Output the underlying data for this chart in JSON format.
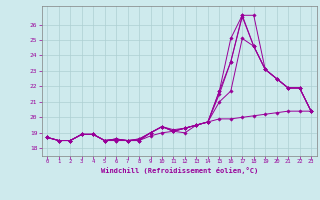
{
  "xlabel": "Windchill (Refroidissement éolien,°C)",
  "background_color": "#ceeaed",
  "grid_color": "#aecfd2",
  "line_color": "#990099",
  "x_ticks": [
    0,
    1,
    2,
    3,
    4,
    5,
    6,
    7,
    8,
    9,
    10,
    11,
    12,
    13,
    14,
    15,
    16,
    17,
    18,
    19,
    20,
    21,
    22,
    23
  ],
  "ylim": [
    17.5,
    27.2
  ],
  "xlim": [
    -0.5,
    23.5
  ],
  "yticks": [
    18,
    19,
    20,
    21,
    22,
    23,
    24,
    25,
    26
  ],
  "series": [
    [
      18.7,
      18.5,
      18.5,
      18.9,
      18.9,
      18.5,
      18.5,
      18.5,
      18.5,
      19.0,
      19.4,
      19.1,
      19.3,
      19.5,
      19.7,
      21.7,
      25.1,
      26.6,
      26.6,
      23.1,
      22.5,
      21.9,
      21.9,
      20.4
    ],
    [
      18.7,
      18.5,
      18.5,
      18.9,
      18.9,
      18.5,
      18.6,
      18.5,
      18.6,
      19.0,
      19.4,
      19.2,
      19.3,
      19.5,
      19.7,
      21.7,
      23.6,
      26.5,
      24.6,
      23.1,
      22.5,
      21.9,
      21.9,
      20.4
    ],
    [
      18.7,
      18.5,
      18.5,
      18.9,
      18.9,
      18.5,
      18.6,
      18.5,
      18.6,
      19.0,
      19.4,
      19.1,
      19.3,
      19.5,
      19.7,
      21.0,
      21.7,
      25.1,
      24.6,
      23.1,
      22.5,
      21.9,
      21.9,
      20.4
    ],
    [
      18.7,
      18.5,
      18.5,
      18.9,
      18.9,
      18.5,
      18.6,
      18.5,
      18.5,
      19.0,
      19.4,
      19.1,
      19.3,
      19.5,
      19.7,
      21.5,
      23.6,
      26.6,
      24.6,
      23.1,
      22.5,
      21.9,
      21.9,
      20.4
    ],
    [
      18.7,
      18.5,
      18.5,
      18.9,
      18.9,
      18.5,
      18.5,
      18.5,
      18.5,
      18.8,
      19.0,
      19.1,
      19.0,
      19.5,
      19.7,
      19.9,
      19.9,
      20.0,
      20.1,
      20.2,
      20.3,
      20.4,
      20.4,
      20.4
    ]
  ]
}
